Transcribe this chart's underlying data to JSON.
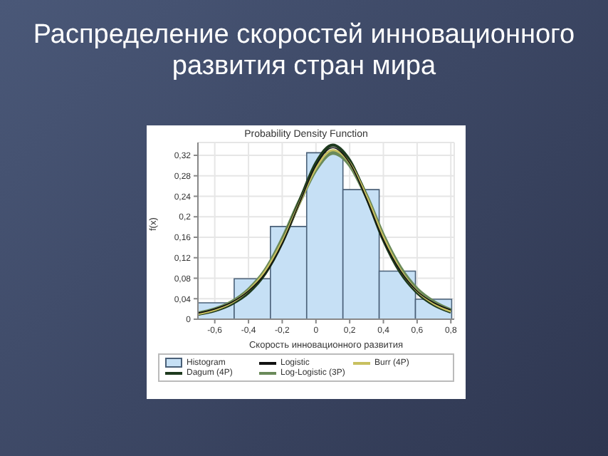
{
  "chart_data": {
    "type": "histogram",
    "title": "Распределение скоростей инновационного развития стран мира",
    "subtitle": "Probability Density Function",
    "xlabel": "Скорость инновационного развития",
    "ylabel": "f(x)",
    "bins": [
      -0.7,
      -0.485,
      -0.27,
      -0.055,
      0.16,
      0.375,
      0.59,
      0.805
    ],
    "series": [
      {
        "name": "Histogram",
        "color": "#c6e0f5",
        "values": [
          0.032,
          0.079,
          0.181,
          0.325,
          0.253,
          0.094,
          0.039
        ]
      },
      {
        "name": "Logistic",
        "type": "line",
        "color": "#111111",
        "x": [
          -0.7,
          -0.6,
          -0.5,
          -0.4,
          -0.3,
          -0.2,
          -0.1,
          0,
          0.1,
          0.2,
          0.3,
          0.4,
          0.5,
          0.6,
          0.7,
          0.8
        ],
        "values": [
          0.012,
          0.02,
          0.033,
          0.055,
          0.09,
          0.148,
          0.225,
          0.3,
          0.335,
          0.305,
          0.235,
          0.155,
          0.095,
          0.055,
          0.032,
          0.018
        ]
      },
      {
        "name": "Burr (4P)",
        "type": "line",
        "color": "#c8c060",
        "x": [
          -0.7,
          -0.6,
          -0.5,
          -0.4,
          -0.3,
          -0.2,
          -0.1,
          0,
          0.1,
          0.2,
          0.3,
          0.4,
          0.5,
          0.6,
          0.7,
          0.8
        ],
        "values": [
          0.01,
          0.018,
          0.032,
          0.056,
          0.094,
          0.152,
          0.225,
          0.295,
          0.33,
          0.305,
          0.24,
          0.16,
          0.097,
          0.055,
          0.03,
          0.015
        ]
      },
      {
        "name": "Dagum (4P)",
        "type": "line",
        "color": "#1e3a1e",
        "x": [
          -0.7,
          -0.6,
          -0.5,
          -0.4,
          -0.3,
          -0.2,
          -0.1,
          0,
          0.1,
          0.2,
          0.3,
          0.4,
          0.5,
          0.6,
          0.7,
          0.8
        ],
        "values": [
          0.01,
          0.017,
          0.03,
          0.052,
          0.09,
          0.15,
          0.228,
          0.305,
          0.34,
          0.31,
          0.238,
          0.155,
          0.092,
          0.052,
          0.028,
          0.014
        ]
      },
      {
        "name": "Log-Logistic (3P)",
        "type": "line",
        "color": "#6a8a5a",
        "x": [
          -0.7,
          -0.6,
          -0.5,
          -0.4,
          -0.3,
          -0.2,
          -0.1,
          0,
          0.1,
          0.2,
          0.3,
          0.4,
          0.5,
          0.6,
          0.7,
          0.8
        ],
        "values": [
          0.011,
          0.019,
          0.033,
          0.057,
          0.095,
          0.155,
          0.228,
          0.293,
          0.325,
          0.302,
          0.24,
          0.162,
          0.1,
          0.058,
          0.033,
          0.017
        ]
      }
    ],
    "xlim": [
      -0.7,
      0.82
    ],
    "ylim": [
      0,
      0.345
    ],
    "xticks": [
      {
        "value": -0.6,
        "label": "-0,6"
      },
      {
        "value": -0.4,
        "label": "-0,4"
      },
      {
        "value": -0.2,
        "label": "-0,2"
      },
      0,
      {
        "value": 0.2,
        "label": "0,2"
      },
      {
        "value": 0.4,
        "label": "0,4"
      },
      {
        "value": 0.6,
        "label": "0,6"
      },
      {
        "value": 0.8,
        "label": "0,8"
      }
    ],
    "yticks": [
      0,
      {
        "value": 0.04,
        "label": "0,04"
      },
      {
        "value": 0.08,
        "label": "0,08"
      },
      {
        "value": 0.12,
        "label": "0,12"
      },
      {
        "value": 0.16,
        "label": "0,16"
      },
      {
        "value": 0.2,
        "label": "0,2"
      },
      {
        "value": 0.24,
        "label": "0,24"
      },
      {
        "value": 0.28,
        "label": "0,28"
      },
      {
        "value": 0.32,
        "label": "0,32"
      }
    ],
    "grid": true,
    "legend": "bottom"
  }
}
